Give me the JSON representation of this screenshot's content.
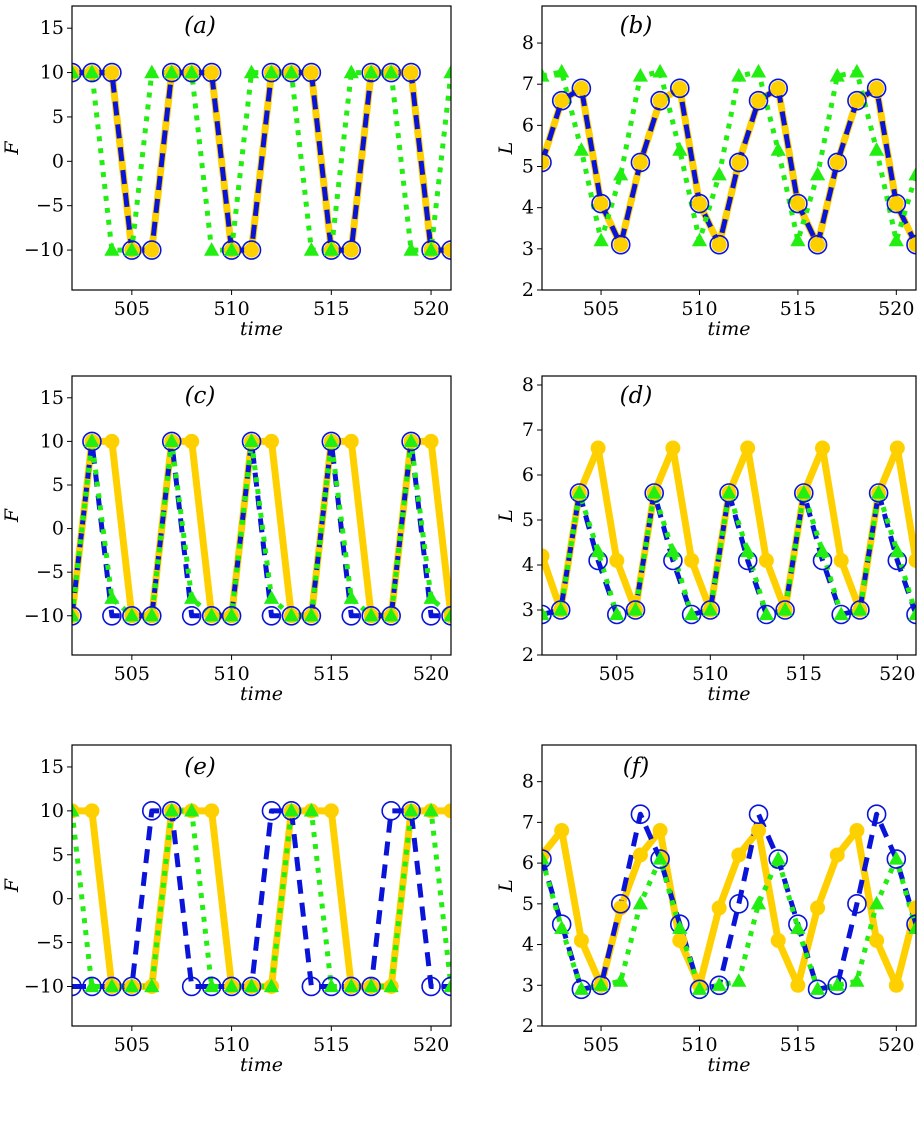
{
  "chart_data": [
    {
      "type": "line",
      "title": "(a)",
      "xlabel": "time",
      "ylabel": "F",
      "xlim": [
        502,
        521
      ],
      "ylim": [
        -14.5,
        17.5
      ],
      "xticks": [
        "505",
        "510",
        "515",
        "520"
      ],
      "yticks": [
        "15",
        "10",
        "5",
        "0",
        "−5",
        "−10"
      ],
      "x": [
        502,
        503,
        504,
        505,
        506,
        507,
        508,
        509,
        510,
        511,
        512,
        513,
        514,
        515,
        516,
        517,
        518,
        519,
        520,
        521
      ],
      "series": [
        {
          "style": "yellow-solid-filled-circle",
          "values": [
            10,
            10,
            10,
            -10,
            -10,
            10,
            10,
            10,
            -10,
            -10,
            10,
            10,
            10,
            -10,
            -10,
            10,
            10,
            10,
            -10,
            -10
          ]
        },
        {
          "style": "blue-dashed-open-circle",
          "values": [
            10,
            10,
            10,
            -10,
            -10,
            10,
            10,
            10,
            -10,
            -10,
            10,
            10,
            10,
            -10,
            -10,
            10,
            10,
            10,
            -10,
            -10
          ]
        },
        {
          "style": "green-dotted-triangle",
          "values": [
            10,
            10,
            -10,
            -10,
            10,
            10,
            10,
            -10,
            -10,
            10,
            10,
            10,
            -10,
            -10,
            10,
            10,
            10,
            -10,
            -10,
            10
          ]
        }
      ]
    },
    {
      "type": "line",
      "title": "(b)",
      "xlabel": "time",
      "ylabel": "L",
      "xlim": [
        502,
        521
      ],
      "ylim": [
        2,
        8.9
      ],
      "xticks": [
        "505",
        "510",
        "515",
        "520"
      ],
      "yticks": [
        "8",
        "7",
        "6",
        "5",
        "4",
        "3",
        "2"
      ],
      "x": [
        502,
        503,
        504,
        505,
        506,
        507,
        508,
        509,
        510,
        511,
        512,
        513,
        514,
        515,
        516,
        517,
        518,
        519,
        520,
        521
      ],
      "series": [
        {
          "style": "yellow-solid-filled-circle",
          "values": [
            5.1,
            6.6,
            6.9,
            4.1,
            3.1,
            5.1,
            6.6,
            6.9,
            4.1,
            3.1,
            5.1,
            6.6,
            6.9,
            4.1,
            3.1,
            5.1,
            6.6,
            6.9,
            4.1,
            3.1
          ]
        },
        {
          "style": "blue-dashed-open-circle",
          "values": [
            5.1,
            6.6,
            6.9,
            4.1,
            3.1,
            5.1,
            6.6,
            6.9,
            4.1,
            3.1,
            5.1,
            6.6,
            6.9,
            4.1,
            3.1,
            5.1,
            6.6,
            6.9,
            4.1,
            3.1
          ]
        },
        {
          "style": "green-dotted-triangle",
          "values": [
            7.2,
            7.3,
            5.4,
            3.2,
            4.8,
            7.2,
            7.3,
            5.4,
            3.2,
            4.8,
            7.2,
            7.3,
            5.4,
            3.2,
            4.8,
            7.2,
            7.3,
            5.4,
            3.2,
            4.8
          ]
        }
      ]
    },
    {
      "type": "line",
      "title": "(c)",
      "xlabel": "time",
      "ylabel": "F",
      "xlim": [
        502,
        521
      ],
      "ylim": [
        -14.5,
        17.5
      ],
      "xticks": [
        "505",
        "510",
        "515",
        "520"
      ],
      "yticks": [
        "15",
        "10",
        "5",
        "0",
        "−5",
        "−10"
      ],
      "x": [
        502,
        503,
        504,
        505,
        506,
        507,
        508,
        509,
        510,
        511,
        512,
        513,
        514,
        515,
        516,
        517,
        518,
        519,
        520,
        521
      ],
      "series": [
        {
          "style": "yellow-solid-filled-circle",
          "values": [
            -10,
            10,
            10,
            -10,
            -10,
            10,
            10,
            -10,
            -10,
            10,
            10,
            -10,
            -10,
            10,
            10,
            -10,
            -10,
            10,
            10,
            -10
          ]
        },
        {
          "style": "blue-dashed-open-circle",
          "values": [
            -10,
            10,
            -10,
            -10,
            -10,
            10,
            -10,
            -10,
            -10,
            10,
            -10,
            -10,
            -10,
            10,
            -10,
            -10,
            -10,
            10,
            -10,
            -10
          ]
        },
        {
          "style": "green-dotted-triangle",
          "values": [
            -10,
            10,
            -8,
            -10,
            -10,
            10,
            -8,
            -10,
            -10,
            10,
            -8,
            -10,
            -10,
            10,
            -8,
            -10,
            -10,
            10,
            -8,
            -10
          ]
        }
      ]
    },
    {
      "type": "line",
      "title": "(d)",
      "xlabel": "time",
      "ylabel": "L",
      "xlim": [
        501,
        521
      ],
      "ylim": [
        2,
        8.2
      ],
      "xticks": [
        "505",
        "510",
        "515",
        "520"
      ],
      "yticks": [
        "8",
        "7",
        "6",
        "5",
        "4",
        "3",
        "2"
      ],
      "x": [
        501,
        502,
        503,
        504,
        505,
        506,
        507,
        508,
        509,
        510,
        511,
        512,
        513,
        514,
        515,
        516,
        517,
        518,
        519,
        520,
        521
      ],
      "series": [
        {
          "style": "yellow-solid-filled-circle",
          "values": [
            4.2,
            3.0,
            5.6,
            6.6,
            4.1,
            3.0,
            5.6,
            6.6,
            4.1,
            3.0,
            5.6,
            6.6,
            4.1,
            3.0,
            5.6,
            6.6,
            4.1,
            3.0,
            5.6,
            6.6,
            4.1
          ]
        },
        {
          "style": "blue-dashed-open-circle",
          "values": [
            2.9,
            3.0,
            5.6,
            4.1,
            2.9,
            3.0,
            5.6,
            4.1,
            2.9,
            3.0,
            5.6,
            4.1,
            2.9,
            3.0,
            5.6,
            4.1,
            2.9,
            3.0,
            5.6,
            4.1,
            2.9
          ]
        },
        {
          "style": "green-dotted-triangle",
          "values": [
            2.9,
            3.0,
            5.6,
            4.3,
            2.9,
            3.0,
            5.6,
            4.3,
            2.9,
            3.0,
            5.6,
            4.3,
            2.9,
            3.0,
            5.6,
            4.3,
            2.9,
            3.0,
            5.6,
            4.3,
            2.9
          ]
        }
      ]
    },
    {
      "type": "line",
      "title": "(e)",
      "xlabel": "time",
      "ylabel": "F",
      "xlim": [
        502,
        521
      ],
      "ylim": [
        -14.5,
        17.5
      ],
      "xticks": [
        "505",
        "510",
        "515",
        "520"
      ],
      "yticks": [
        "15",
        "10",
        "5",
        "0",
        "−5",
        "−10"
      ],
      "x": [
        502,
        503,
        504,
        505,
        506,
        507,
        508,
        509,
        510,
        511,
        512,
        513,
        514,
        515,
        516,
        517,
        518,
        519,
        520,
        521
      ],
      "series": [
        {
          "style": "yellow-solid-filled-circle",
          "values": [
            10,
            10,
            -10,
            -10,
            -10,
            10,
            10,
            10,
            -10,
            -10,
            -10,
            10,
            10,
            10,
            -10,
            -10,
            -10,
            10,
            10,
            10
          ]
        },
        {
          "style": "blue-dashed-open-circle",
          "values": [
            -10,
            -10,
            -10,
            -10,
            10,
            10,
            -10,
            -10,
            -10,
            -10,
            10,
            10,
            -10,
            -10,
            -10,
            -10,
            10,
            10,
            -10,
            -10
          ]
        },
        {
          "style": "green-dotted-triangle",
          "values": [
            10,
            -10,
            -10,
            -10,
            -10,
            10,
            10,
            -10,
            -10,
            -10,
            -10,
            10,
            10,
            -10,
            -10,
            -10,
            -10,
            10,
            10,
            -10
          ]
        }
      ]
    },
    {
      "type": "line",
      "title": "(f)",
      "xlabel": "time",
      "ylabel": "L",
      "xlim": [
        502,
        521
      ],
      "ylim": [
        2,
        8.9
      ],
      "xticks": [
        "505",
        "510",
        "515",
        "520"
      ],
      "yticks": [
        "8",
        "7",
        "6",
        "5",
        "4",
        "3",
        "2"
      ],
      "x": [
        502,
        503,
        504,
        505,
        506,
        507,
        508,
        509,
        510,
        511,
        512,
        513,
        514,
        515,
        516,
        517,
        518,
        519,
        520,
        521
      ],
      "series": [
        {
          "style": "yellow-solid-filled-circle",
          "values": [
            6.2,
            6.8,
            4.1,
            3.0,
            4.9,
            6.2,
            6.8,
            4.1,
            3.0,
            4.9,
            6.2,
            6.8,
            4.1,
            3.0,
            4.9,
            6.2,
            6.8,
            4.1,
            3.0,
            4.9
          ]
        },
        {
          "style": "blue-dashed-open-circle",
          "values": [
            6.1,
            4.5,
            2.9,
            3.0,
            5.0,
            7.2,
            6.1,
            4.5,
            2.9,
            3.0,
            5.0,
            7.2,
            6.1,
            4.5,
            2.9,
            3.0,
            5.0,
            7.2,
            6.1,
            4.5
          ]
        },
        {
          "style": "green-dotted-triangle",
          "values": [
            6.1,
            4.4,
            2.9,
            3.0,
            3.1,
            5.0,
            6.1,
            4.4,
            2.9,
            3.0,
            3.1,
            5.0,
            6.1,
            4.4,
            2.9,
            3.0,
            3.1,
            5.0,
            6.1,
            4.4
          ]
        }
      ]
    }
  ],
  "colors": {
    "yellow": "#FFD000",
    "blue": "#0A14D8",
    "green": "#22EE11",
    "axis": "#000000",
    "background": "#FFFFFF"
  }
}
